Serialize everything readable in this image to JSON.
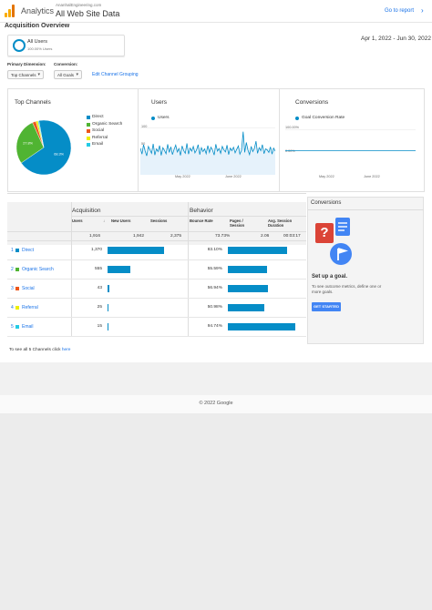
{
  "header": {
    "app_name": "Analytics",
    "account": "AnanhalEngineering.com",
    "property": "All Web Site Data",
    "goto_report": "Go to report",
    "goto_arrow": "›"
  },
  "overview": {
    "title": "Acquisition Overview",
    "date_range": "Apr 1, 2022 - Jun 30, 2022"
  },
  "segment": {
    "name": "All Users",
    "pct": "100.00% Users"
  },
  "controls": {
    "primary_dimension_label": "Primary Dimension:",
    "primary_dimension_value": "Top Channels",
    "conversion_label": "Conversion:",
    "conversion_value": "All Goals",
    "edit_grouping": "Edit Channel Grouping"
  },
  "top_channels": {
    "title": "Top Channels",
    "legend": [
      {
        "label": "Direct",
        "color": "#058dc7"
      },
      {
        "label": "Organic Search",
        "color": "#50b432"
      },
      {
        "label": "Social",
        "color": "#ed561b"
      },
      {
        "label": "Referral",
        "color": "#edef00"
      },
      {
        "label": "Email",
        "color": "#24cbe5"
      }
    ],
    "slice_labels": [
      "68.3%",
      "27.8%"
    ]
  },
  "users_panel": {
    "title": "Users",
    "legend": "Users",
    "y_top": "100",
    "y_bottom": "50",
    "x_labels": [
      "May 2022",
      "June 2022"
    ]
  },
  "conversions_panel": {
    "title": "Conversions",
    "legend": "Goal Conversion Rate",
    "y_top": "100.00%",
    "y_bottom": "0.00%",
    "x_labels": [
      "May 2022",
      "June 2022"
    ]
  },
  "table": {
    "group_acquisition": "Acquisition",
    "group_behavior": "Behavior",
    "headers": [
      "Users",
      "New Users",
      "Sessions",
      "Bounce Rate",
      "Pages / Session",
      "Avg. Session Duration"
    ],
    "sort_icon": "↓",
    "totals": [
      "1,916",
      "1,942",
      "2,375",
      "73.73%",
      "2.06",
      "00:03:17"
    ],
    "rows": [
      {
        "num": "1",
        "channel": "Direct",
        "users": "1,370",
        "bounce": "83.10%",
        "color": "#058dc7"
      },
      {
        "num": "2",
        "channel": "Organic Search",
        "users": "555",
        "bounce": "55.59%",
        "color": "#50b432"
      },
      {
        "num": "3",
        "channel": "Social",
        "users": "43",
        "bounce": "56.94%",
        "color": "#ed561b"
      },
      {
        "num": "4",
        "channel": "Referral",
        "users": "25",
        "bounce": "50.98%",
        "color": "#edef00"
      },
      {
        "num": "5",
        "channel": "Email",
        "users": "15",
        "bounce": "94.74%",
        "color": "#24cbe5"
      }
    ]
  },
  "conversions_side": {
    "title": "Conversions",
    "setup_title": "Set up a goal.",
    "setup_desc": "To see outcome metrics, define one or more goals.",
    "button": "GET STARTED",
    "question_mark": "?",
    "flag_icon": "flag-icon"
  },
  "footer": {
    "see_all_prefix": "To see all 5 Channels click ",
    "see_all_link": "here",
    "copyright": "© 2022 Google"
  },
  "chart_data": [
    {
      "type": "pie",
      "categories": [
        "Direct",
        "Organic Search",
        "Social",
        "Referral",
        "Email"
      ],
      "values": [
        68.3,
        27.8,
        2.1,
        1.2,
        0.6
      ]
    },
    {
      "type": "line",
      "title": "Users",
      "series": [
        {
          "name": "Users",
          "values": [
            62,
            48,
            70,
            55,
            44,
            66,
            58,
            50,
            72,
            46,
            60,
            54,
            68,
            45,
            63,
            57,
            49,
            71,
            52,
            65,
            47,
            59,
            69,
            53,
            61,
            45,
            67,
            56,
            50,
            73,
            48,
            62,
            55,
            66,
            51,
            58,
            70,
            47,
            63,
            54,
            60,
            49,
            68,
            52,
            64,
            57,
            46,
            71,
            55,
            61,
            50,
            66,
            58,
            53,
            69,
            47,
            62,
            56,
            64,
            51,
            59,
            67,
            48,
            57,
            100,
            52,
            75,
            58,
            47,
            66,
            54,
            61,
            78,
            50,
            63,
            56,
            70,
            49,
            60,
            58,
            52,
            65,
            48,
            62,
            55
          ]
        }
      ],
      "ylim": [
        0,
        110
      ]
    },
    {
      "type": "line",
      "title": "Conversions",
      "series": [
        {
          "name": "Goal Conversion Rate",
          "values": [
            0,
            0
          ]
        }
      ],
      "ylim": [
        0,
        100
      ]
    }
  ]
}
